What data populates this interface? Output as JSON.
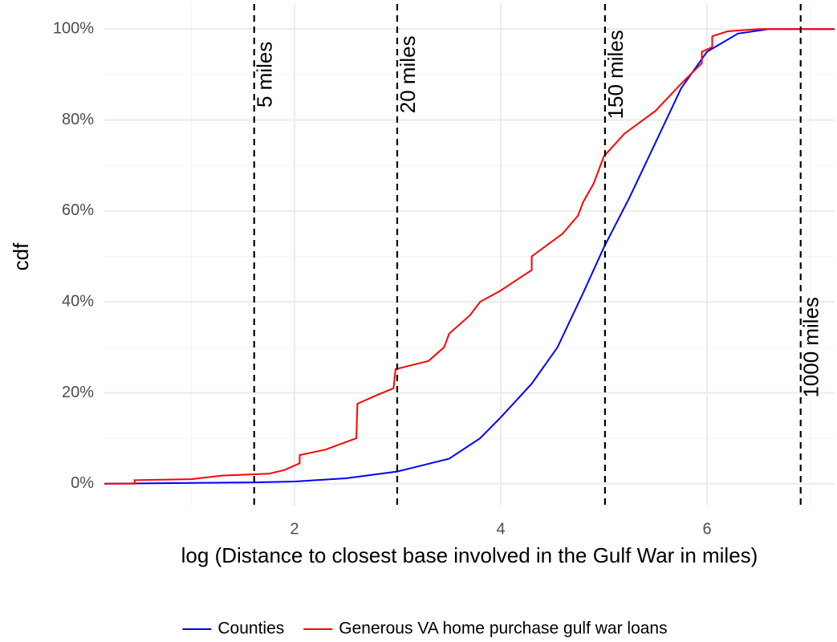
{
  "chart_data": {
    "type": "line",
    "xlabel": "log (Distance to closest base involved in the Gulf War in miles)",
    "ylabel": "cdf",
    "xlim": [
      0.156,
      7.237
    ],
    "ylim": [
      -4.8,
      105.5
    ],
    "xticks": [
      2,
      4,
      6
    ],
    "yticks": [
      {
        "value": 0,
        "label": "0%"
      },
      {
        "value": 20,
        "label": "20%"
      },
      {
        "value": 40,
        "label": "40%"
      },
      {
        "value": 60,
        "label": "60%"
      },
      {
        "value": 80,
        "label": "80%"
      },
      {
        "value": 100,
        "label": "100%"
      }
    ],
    "x_minor_ticks": [
      1,
      3,
      5,
      7
    ],
    "y_minor_ticks": [
      10,
      30,
      50,
      70,
      90
    ],
    "grid": true,
    "legend": "bottom",
    "annotations": [
      {
        "x": 1.609,
        "y": 90,
        "label": "5 miles"
      },
      {
        "x": 2.996,
        "y": 90,
        "label": "20 miles"
      },
      {
        "x": 5.011,
        "y": 90,
        "label": "150 miles"
      },
      {
        "x": 6.908,
        "y": 30,
        "label": "1000 miles"
      }
    ],
    "series": [
      {
        "name": "Counties",
        "color": "#0000ff",
        "x": [
          0.156,
          1.6,
          2,
          2.5,
          3,
          3.5,
          3.8,
          4,
          4.3,
          4.55,
          4.8,
          5,
          5.25,
          5.5,
          5.75,
          6,
          6.3,
          6.6,
          7.237
        ],
        "values": [
          0,
          0.3,
          0.5,
          1.2,
          2.7,
          5.5,
          10,
          14.6,
          22,
          30,
          42,
          52,
          63,
          75,
          87,
          95,
          99,
          100,
          100
        ]
      },
      {
        "name": "Generous VA home purchase gulf war loans",
        "color": "#ff0000",
        "x": [
          0.156,
          0.45,
          0.45,
          1.0,
          1.3,
          1.75,
          1.9,
          2.05,
          2.05,
          2.3,
          2.6,
          2.61,
          2.8,
          2.96,
          2.98,
          3.3,
          3.45,
          3.5,
          3.7,
          3.8,
          4.0,
          4.3,
          4.3,
          4.6,
          4.75,
          4.8,
          4.9,
          4.95,
          5.0,
          5.2,
          5.5,
          5.75,
          5.95,
          5.95,
          6.05,
          6.05,
          6.2,
          6.5,
          7.237
        ],
        "values": [
          0,
          0,
          0.8,
          1.0,
          1.8,
          2.2,
          3,
          4.5,
          6.3,
          7.5,
          10,
          17.6,
          19.5,
          21,
          25.2,
          27,
          30,
          33,
          37,
          40,
          42.5,
          47,
          50,
          55,
          59,
          62,
          66,
          69,
          72,
          77,
          82,
          88,
          92.5,
          95,
          96,
          98.4,
          99.5,
          100,
          100
        ]
      }
    ]
  }
}
